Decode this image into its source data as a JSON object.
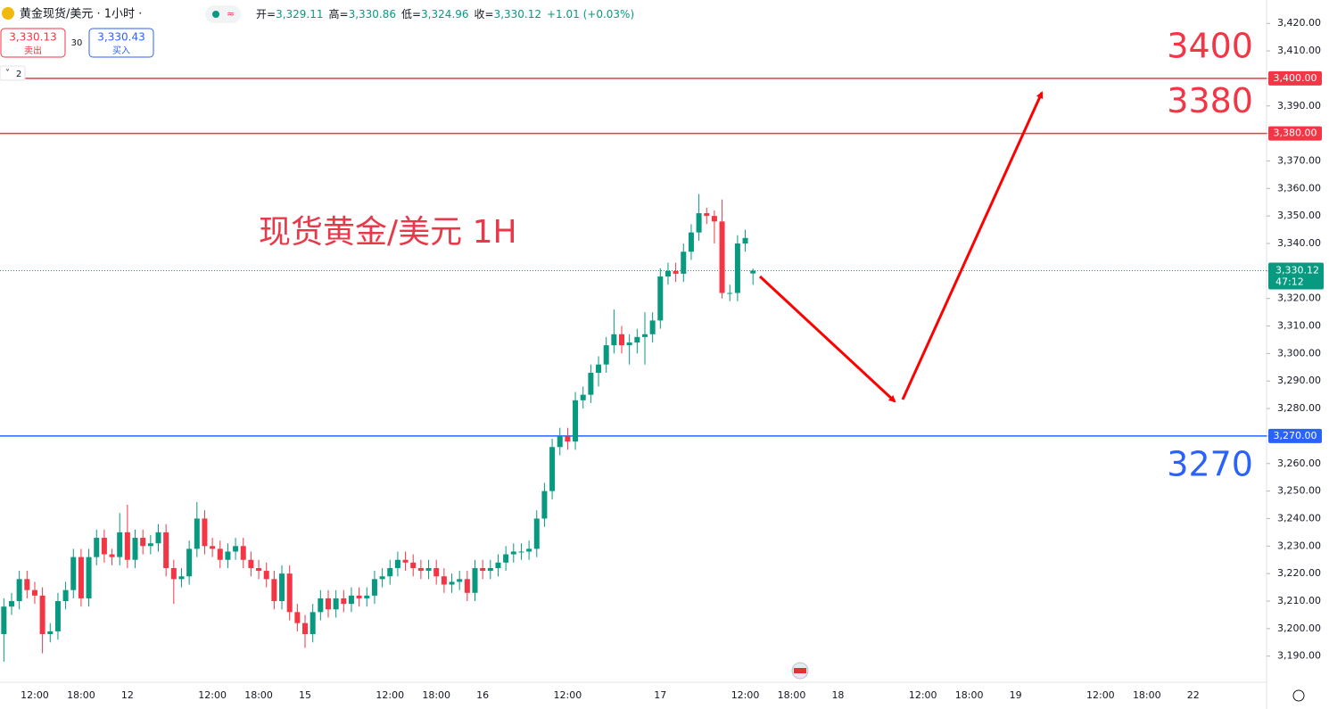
{
  "header": {
    "symbol": "黄金现货/美元 · 1小时 ·",
    "ohlc": [
      {
        "key": "开=",
        "value": "3,329.11"
      },
      {
        "key": "高=",
        "value": "3,330.86"
      },
      {
        "key": "低=",
        "value": "3,324.96"
      },
      {
        "key": "收=",
        "value": "3,330.12"
      }
    ],
    "change": "+1.01 (+0.03%)",
    "sell": {
      "price": "3,330.13",
      "label": "卖出"
    },
    "spread": "30",
    "buy": {
      "price": "3,330.43",
      "label": "买入"
    },
    "indicators": "2"
  },
  "chart_data": {
    "type": "candlestick",
    "title": "现货黄金/美元 1H",
    "up_color": "#089981",
    "down_color": "#f23645",
    "ylim": [
      3180.5,
      3428.5
    ],
    "yticks": [
      {
        "value": 3190,
        "label": "3,190.00"
      },
      {
        "value": 3200,
        "label": "3,200.00"
      },
      {
        "value": 3210,
        "label": "3,210.00"
      },
      {
        "value": 3220,
        "label": "3,220.00"
      },
      {
        "value": 3230,
        "label": "3,230.00"
      },
      {
        "value": 3240,
        "label": "3,240.00"
      },
      {
        "value": 3250,
        "label": "3,250.00"
      },
      {
        "value": 3260,
        "label": "3,260.00"
      },
      {
        "value": 3270,
        "label": "3,270.00"
      },
      {
        "value": 3280,
        "label": "3,280.00"
      },
      {
        "value": 3290,
        "label": "3,290.00"
      },
      {
        "value": 3300,
        "label": "3,300.00"
      },
      {
        "value": 3310,
        "label": "3,310.00"
      },
      {
        "value": 3320,
        "label": "3,320.00"
      },
      {
        "value": 3330,
        "label": "3,330.00"
      },
      {
        "value": 3340,
        "label": "3,340.00"
      },
      {
        "value": 3350,
        "label": "3,350.00"
      },
      {
        "value": 3360,
        "label": "3,360.00"
      },
      {
        "value": 3370,
        "label": "3,370.00"
      },
      {
        "value": 3380,
        "label": "3,380.00"
      },
      {
        "value": 3390,
        "label": "3,390.00"
      },
      {
        "value": 3400,
        "label": "3,400.00"
      },
      {
        "value": 3410,
        "label": "3,410.00"
      },
      {
        "value": 3420,
        "label": "3,420.00"
      }
    ],
    "categories": [
      null,
      null,
      null,
      null,
      "12:00",
      null,
      null,
      null,
      null,
      null,
      "18:00",
      null,
      null,
      null,
      null,
      null,
      "12",
      null,
      null,
      null,
      null,
      null,
      null,
      null,
      null,
      null,
      null,
      "12:00",
      null,
      null,
      null,
      null,
      null,
      "18:00",
      null,
      null,
      null,
      null,
      null,
      "15",
      null,
      null,
      null,
      null,
      null,
      null,
      null,
      null,
      null,
      null,
      "12:00",
      null,
      null,
      null,
      null,
      null,
      "18:00",
      null,
      null,
      null,
      null,
      null,
      "16",
      null,
      null,
      null,
      null,
      null,
      null,
      null,
      null,
      null,
      null,
      "12:00",
      null,
      null,
      null,
      null,
      null,
      null,
      null,
      null,
      null,
      null,
      null,
      "17",
      null,
      null,
      null,
      null,
      null,
      null,
      null,
      null,
      null,
      null,
      "12:00",
      null,
      null,
      null,
      null,
      null,
      "18:00",
      null,
      null,
      null,
      null,
      null,
      "18",
      null,
      null,
      null,
      null,
      null,
      null,
      null,
      null,
      null,
      null,
      "12:00",
      null,
      null,
      null,
      null,
      null,
      "18:00",
      null,
      null,
      null,
      null,
      null,
      "19",
      null,
      null,
      null,
      null,
      null,
      null,
      null,
      null,
      null,
      null,
      "12:00",
      null,
      null,
      null,
      null,
      null,
      "18:00",
      null,
      null,
      null,
      null,
      null,
      "22",
      null,
      null,
      null,
      null,
      null,
      null,
      null,
      null,
      null
    ],
    "open": [
      3198,
      3208,
      3210,
      3218,
      3214,
      3212,
      3198,
      3199,
      3210,
      3214,
      3226,
      3211,
      3226,
      3233,
      3227,
      3226,
      3235,
      3225,
      3233,
      3230,
      3231,
      3235,
      3222,
      3218,
      3219,
      3229,
      3240,
      3230,
      3229,
      3225,
      3228,
      3230,
      3225,
      3222,
      3221,
      3218,
      3210,
      3220,
      3206,
      3202,
      3198,
      3206,
      3211,
      3207,
      3211,
      3209,
      3212,
      3211,
      3212,
      3218,
      3219,
      3222,
      3225,
      3224,
      3222,
      3221,
      3222,
      3219,
      3216,
      3217,
      3218,
      3213,
      3222,
      3221,
      3222,
      3224,
      3227,
      3228,
      3228,
      3229,
      3240,
      3250,
      3266,
      3270,
      3268,
      3283,
      3285,
      3293,
      3296,
      3303,
      3307,
      3303,
      3304,
      3306,
      3307,
      3312,
      3328,
      3330,
      3329,
      3337,
      3344,
      3351,
      3350,
      3348,
      3322,
      3322,
      3340,
      3329.11,
      null,
      null,
      null,
      null,
      null,
      null,
      null,
      null,
      null,
      null,
      null,
      null,
      null,
      null,
      null,
      null,
      null,
      null,
      null,
      null,
      null,
      null,
      null,
      null,
      null,
      null,
      null,
      null,
      null,
      null,
      null,
      null,
      null,
      null,
      null,
      null,
      null,
      null,
      null,
      null,
      null,
      null,
      null,
      null,
      null,
      null,
      null,
      null,
      null,
      null,
      null,
      null,
      null,
      null,
      null,
      null,
      null,
      null,
      null,
      null,
      null,
      null,
      null,
      null,
      null,
      null
    ],
    "high": [
      3211,
      3213,
      3221,
      3221,
      3217,
      3215,
      3202,
      3213,
      3217,
      3229,
      3229,
      3229,
      3236,
      3236,
      3229,
      3242,
      3245,
      3236,
      3236,
      3234,
      3238,
      3238,
      3225,
      3222,
      3232,
      3246,
      3243,
      3233,
      3232,
      3231,
      3233,
      3233,
      3228,
      3225,
      3224,
      3221,
      3223,
      3223,
      3209,
      3205,
      3209,
      3214,
      3214,
      3214,
      3214,
      3215,
      3215,
      3215,
      3221,
      3222,
      3225,
      3228,
      3228,
      3227,
      3225,
      3225,
      3225,
      3222,
      3220,
      3221,
      3221,
      3225,
      3225,
      3225,
      3227,
      3230,
      3231,
      3231,
      3232,
      3243,
      3253,
      3269,
      3273,
      3273,
      3286,
      3288,
      3296,
      3299,
      3306,
      3316,
      3310,
      3307,
      3309,
      3315,
      3315,
      3331,
      3333,
      3333,
      3340,
      3347,
      3358,
      3353,
      3352,
      3356,
      3325,
      3343,
      3345,
      3330.86,
      null,
      null,
      null,
      null,
      null,
      null,
      null,
      null,
      null,
      null,
      null,
      null,
      null,
      null,
      null,
      null,
      null,
      null,
      null,
      null,
      null,
      null,
      null,
      null,
      null,
      null,
      null,
      null,
      null,
      null,
      null,
      null,
      null,
      null,
      null,
      null,
      null,
      null,
      null,
      null,
      null,
      null,
      null,
      null,
      null,
      null,
      null,
      null,
      null,
      null,
      null,
      null,
      null,
      null,
      null,
      null,
      null,
      null,
      null,
      null,
      null,
      null,
      null,
      null,
      null,
      null
    ],
    "low": [
      3188,
      3205,
      3207,
      3211,
      3209,
      3191,
      3195,
      3196,
      3207,
      3211,
      3208,
      3208,
      3223,
      3224,
      3223,
      3223,
      3222,
      3222,
      3227,
      3227,
      3228,
      3219,
      3209,
      3215,
      3216,
      3226,
      3227,
      3226,
      3222,
      3222,
      3225,
      3222,
      3219,
      3218,
      3215,
      3207,
      3207,
      3203,
      3199,
      3193,
      3195,
      3203,
      3204,
      3204,
      3206,
      3206,
      3208,
      3208,
      3209,
      3215,
      3216,
      3219,
      3221,
      3219,
      3218,
      3218,
      3216,
      3213,
      3213,
      3214,
      3210,
      3210,
      3218,
      3218,
      3219,
      3221,
      3224,
      3225,
      3225,
      3226,
      3237,
      3247,
      3263,
      3265,
      3265,
      3280,
      3282,
      3288,
      3293,
      3300,
      3300,
      3296,
      3300,
      3296,
      3304,
      3309,
      3325,
      3326,
      3326,
      3334,
      3341,
      3347,
      3340,
      3320,
      3319,
      3319,
      3337,
      3324.96,
      null,
      null,
      null,
      null,
      null,
      null,
      null,
      null,
      null,
      null,
      null,
      null,
      null,
      null,
      null,
      null,
      null,
      null,
      null,
      null,
      null,
      null,
      null,
      null,
      null,
      null,
      null,
      null,
      null,
      null,
      null,
      null,
      null,
      null,
      null,
      null,
      null,
      null,
      null,
      null,
      null,
      null,
      null,
      null,
      null,
      null,
      null,
      null,
      null,
      null,
      null,
      null,
      null,
      null,
      null,
      null,
      null,
      null,
      null,
      null,
      null,
      null,
      null,
      null,
      null,
      null
    ],
    "close": [
      3208,
      3210,
      3218,
      3214,
      3212,
      3198,
      3199,
      3210,
      3214,
      3226,
      3211,
      3226,
      3233,
      3227,
      3226,
      3235,
      3225,
      3233,
      3230,
      3231,
      3235,
      3222,
      3218,
      3219,
      3229,
      3240,
      3230,
      3229,
      3225,
      3228,
      3230,
      3225,
      3222,
      3221,
      3218,
      3210,
      3220,
      3206,
      3202,
      3198,
      3206,
      3211,
      3207,
      3211,
      3209,
      3212,
      3211,
      3212,
      3218,
      3219,
      3222,
      3225,
      3224,
      3222,
      3221,
      3222,
      3219,
      3216,
      3217,
      3218,
      3213,
      3222,
      3221,
      3222,
      3224,
      3227,
      3228,
      3228,
      3229,
      3240,
      3250,
      3266,
      3270,
      3268,
      3283,
      3285,
      3293,
      3296,
      3303,
      3307,
      3303,
      3304,
      3306,
      3307,
      3312,
      3328,
      3330,
      3329,
      3337,
      3344,
      3351,
      3350,
      3348,
      3322,
      3322,
      3340,
      3342,
      3330.12,
      null,
      null,
      null,
      null,
      null,
      null,
      null,
      null,
      null,
      null,
      null,
      null,
      null,
      null,
      null,
      null,
      null,
      null,
      null,
      null,
      null,
      null,
      null,
      null,
      null,
      null,
      null,
      null,
      null,
      null,
      null,
      null,
      null,
      null,
      null,
      null,
      null,
      null,
      null,
      null,
      null,
      null,
      null,
      null,
      null,
      null,
      null,
      null,
      null,
      null,
      null,
      null,
      null,
      null,
      null,
      null,
      null,
      null,
      null,
      null,
      null,
      null,
      null,
      null,
      null,
      null
    ],
    "levels": [
      {
        "value": 3400,
        "label": "3,400.00",
        "color": "#f23645",
        "annotation": "3400"
      },
      {
        "value": 3380,
        "label": "3,380.00",
        "color": "#f23645",
        "annotation": "3380"
      },
      {
        "value": 3270,
        "label": "3,270.00",
        "color": "#2962ff",
        "annotation": "3270"
      }
    ],
    "last_price": {
      "value": 3330.12,
      "label": "3,330.12",
      "countdown": "47:12",
      "color": "#089981"
    }
  }
}
